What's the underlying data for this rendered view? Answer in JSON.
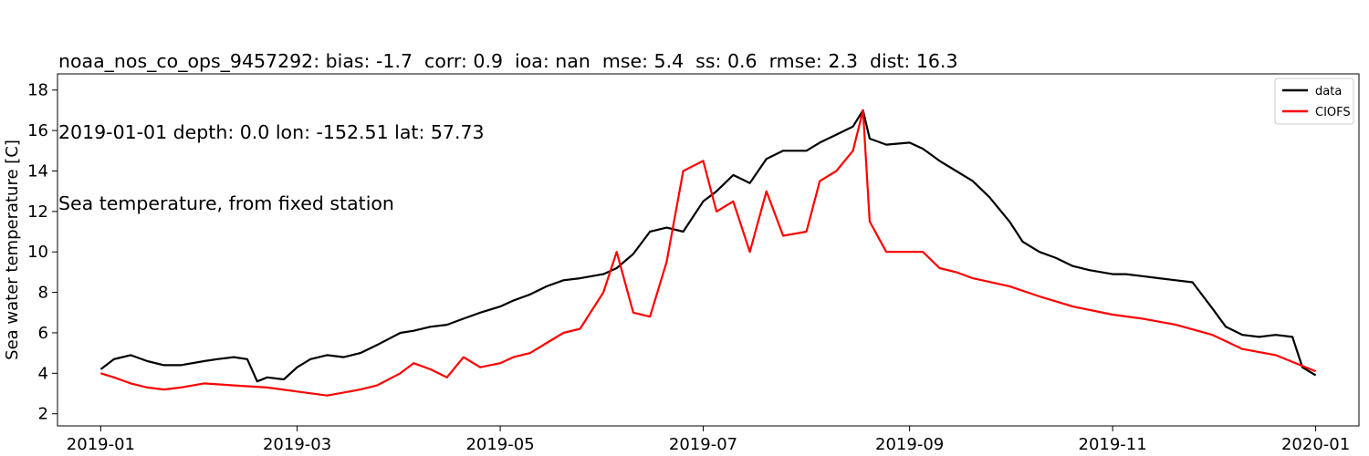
{
  "chart_data": {
    "type": "line",
    "title_lines": [
      "noaa_nos_co_ops_9457292: bias: -1.7  corr: 0.9  ioa: nan  mse: 5.4  ss: 0.6  rmse: 2.3  dist: 16.3",
      "2019-01-01 depth: 0.0 lon: -152.51 lat: 57.73",
      "Sea temperature, from fixed station"
    ],
    "xlabel": "",
    "ylabel": "Sea water temperature [C]",
    "xlim": [
      "2018-12-19",
      "2020-01-14"
    ],
    "ylim": [
      1.4,
      18.8
    ],
    "yticks": [
      2,
      4,
      6,
      8,
      10,
      12,
      14,
      16,
      18
    ],
    "xticks": [
      "2019-01",
      "2019-03",
      "2019-05",
      "2019-07",
      "2019-09",
      "2019-11",
      "2020-01"
    ],
    "xtick_dates": [
      "2019-01-01",
      "2019-03-01",
      "2019-05-01",
      "2019-07-01",
      "2019-09-01",
      "2019-11-01",
      "2020-01-01"
    ],
    "grid": false,
    "legend": "top-right",
    "series": [
      {
        "name": "data",
        "color": "#000000",
        "x": [
          "2019-01-01",
          "2019-01-05",
          "2019-01-10",
          "2019-01-15",
          "2019-01-20",
          "2019-01-25",
          "2019-02-01",
          "2019-02-05",
          "2019-02-10",
          "2019-02-14",
          "2019-02-17",
          "2019-02-20",
          "2019-02-25",
          "2019-03-01",
          "2019-03-05",
          "2019-03-10",
          "2019-03-15",
          "2019-03-20",
          "2019-03-25",
          "2019-04-01",
          "2019-04-05",
          "2019-04-10",
          "2019-04-15",
          "2019-04-20",
          "2019-04-25",
          "2019-05-01",
          "2019-05-05",
          "2019-05-10",
          "2019-05-15",
          "2019-05-20",
          "2019-05-25",
          "2019-06-01",
          "2019-06-05",
          "2019-06-10",
          "2019-06-15",
          "2019-06-20",
          "2019-06-25",
          "2019-07-01",
          "2019-07-05",
          "2019-07-10",
          "2019-07-15",
          "2019-07-20",
          "2019-07-25",
          "2019-08-01",
          "2019-08-05",
          "2019-08-10",
          "2019-08-15",
          "2019-08-18",
          "2019-08-20",
          "2019-08-25",
          "2019-09-01",
          "2019-09-05",
          "2019-09-10",
          "2019-09-15",
          "2019-09-20",
          "2019-09-25",
          "2019-10-01",
          "2019-10-05",
          "2019-10-10",
          "2019-10-15",
          "2019-10-20",
          "2019-10-25",
          "2019-11-01",
          "2019-11-05",
          "2019-11-10",
          "2019-11-15",
          "2019-11-20",
          "2019-11-25",
          "2019-12-01",
          "2019-12-05",
          "2019-12-10",
          "2019-12-15",
          "2019-12-20",
          "2019-12-25",
          "2019-12-28",
          "2020-01-01"
        ],
        "y": [
          4.2,
          4.7,
          4.9,
          4.6,
          4.4,
          4.4,
          4.6,
          4.7,
          4.8,
          4.7,
          3.6,
          3.8,
          3.7,
          4.3,
          4.7,
          4.9,
          4.8,
          5.0,
          5.4,
          6.0,
          6.1,
          6.3,
          6.4,
          6.7,
          7.0,
          7.3,
          7.6,
          7.9,
          8.3,
          8.6,
          8.7,
          8.9,
          9.2,
          9.9,
          11.0,
          11.2,
          11.0,
          12.5,
          13.0,
          13.8,
          13.4,
          14.6,
          15.0,
          15.0,
          15.4,
          15.8,
          16.2,
          17.0,
          15.6,
          15.3,
          15.4,
          15.1,
          14.5,
          14.0,
          13.5,
          12.7,
          11.5,
          10.5,
          10.0,
          9.7,
          9.3,
          9.1,
          8.9,
          8.9,
          8.8,
          8.7,
          8.6,
          8.5,
          7.2,
          6.3,
          5.9,
          5.8,
          5.9,
          5.8,
          4.3,
          3.9
        ]
      },
      {
        "name": "CIOFS",
        "color": "#ff0000",
        "x": [
          "2019-01-01",
          "2019-01-05",
          "2019-01-10",
          "2019-01-15",
          "2019-01-20",
          "2019-01-25",
          "2019-02-01",
          "2019-02-10",
          "2019-02-20",
          "2019-03-01",
          "2019-03-10",
          "2019-03-20",
          "2019-03-25",
          "2019-04-01",
          "2019-04-05",
          "2019-04-10",
          "2019-04-15",
          "2019-04-20",
          "2019-04-25",
          "2019-05-01",
          "2019-05-05",
          "2019-05-10",
          "2019-05-15",
          "2019-05-20",
          "2019-05-25",
          "2019-06-01",
          "2019-06-05",
          "2019-06-10",
          "2019-06-15",
          "2019-06-20",
          "2019-06-25",
          "2019-07-01",
          "2019-07-05",
          "2019-07-10",
          "2019-07-15",
          "2019-07-20",
          "2019-07-25",
          "2019-08-01",
          "2019-08-05",
          "2019-08-10",
          "2019-08-15",
          "2019-08-18",
          "2019-08-20",
          "2019-08-25",
          "2019-09-01",
          "2019-09-05",
          "2019-09-10",
          "2019-09-15",
          "2019-09-20",
          "2019-10-01",
          "2019-10-10",
          "2019-10-20",
          "2019-11-01",
          "2019-11-10",
          "2019-11-20",
          "2019-12-01",
          "2019-12-10",
          "2019-12-20",
          "2020-01-01"
        ],
        "y": [
          4.0,
          3.8,
          3.5,
          3.3,
          3.2,
          3.3,
          3.5,
          3.4,
          3.3,
          3.1,
          2.9,
          3.2,
          3.4,
          4.0,
          4.5,
          4.2,
          3.8,
          4.8,
          4.3,
          4.5,
          4.8,
          5.0,
          5.5,
          6.0,
          6.2,
          8.0,
          10.0,
          7.0,
          6.8,
          9.5,
          14.0,
          14.5,
          12.0,
          12.5,
          10.0,
          13.0,
          10.8,
          11.0,
          13.5,
          14.0,
          15.0,
          17.0,
          11.5,
          10.0,
          10.0,
          10.0,
          9.2,
          9.0,
          8.7,
          8.3,
          7.8,
          7.3,
          6.9,
          6.7,
          6.4,
          5.9,
          5.2,
          4.9,
          4.1
        ]
      }
    ]
  }
}
